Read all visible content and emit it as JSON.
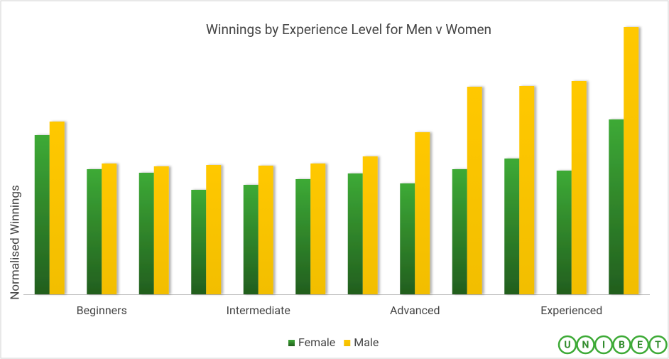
{
  "chart_data": {
    "type": "bar",
    "title": "Winnings by Experience Level for Men v Women",
    "ylabel": "Normalised Winnings",
    "categories": [
      null,
      "Beginners",
      null,
      null,
      "Intermediate",
      null,
      null,
      "Advanced",
      null,
      null,
      "Experienced",
      null
    ],
    "series": [
      {
        "name": "Female",
        "color": "#3daa36",
        "values": [
          224,
          176,
          171,
          147,
          154,
          162,
          170,
          156,
          176,
          191,
          174,
          246
        ]
      },
      {
        "name": "Male",
        "color": "#ffc800",
        "values": [
          243,
          184,
          180,
          182,
          181,
          184,
          194,
          228,
          292,
          293,
          300,
          376
        ]
      }
    ],
    "ylim": [
      0,
      380
    ],
    "logo": [
      "U",
      "N",
      "I",
      "B",
      "E",
      "T"
    ]
  }
}
